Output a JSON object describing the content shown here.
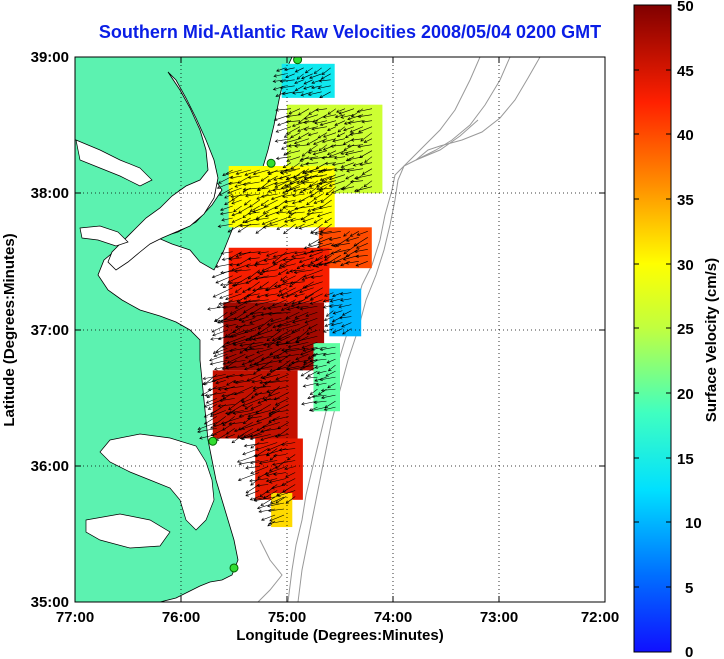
{
  "title": "Southern Mid-Atlantic Raw Velocities 2008/05/04 0200 GMT",
  "xlabel": "Longitude (Degrees:Minutes)",
  "ylabel": "Latitude (Degrees:Minutes)",
  "colorbar_label": "Surface Velocity (cm/s)",
  "x_ticks": [
    "77:00",
    "76:00",
    "75:00",
    "74:00",
    "73:00",
    "72:00"
  ],
  "y_ticks": [
    "39:00",
    "38:00",
    "37:00",
    "36:00",
    "35:00"
  ],
  "colorbar_ticks": [
    "50",
    "45",
    "40",
    "35",
    "30",
    "25",
    "20",
    "15",
    "10",
    "5",
    "0"
  ],
  "colors": {
    "land": "#5cf2b0",
    "title": "#0a1ee6",
    "bathymetry": "#999999"
  },
  "chart_data": {
    "type": "heatmap",
    "title": "Southern Mid-Atlantic Raw Velocities 2008/05/04 0200 GMT",
    "xlabel": "Longitude (Degrees:Minutes)",
    "ylabel": "Latitude (Degrees:Minutes)",
    "xlim": [
      -77,
      -72
    ],
    "ylim": [
      35,
      39
    ],
    "colorbar": {
      "label": "Surface Velocity (cm/s)",
      "range": [
        0,
        50
      ]
    },
    "grid": true,
    "velocity_field_regions": [
      {
        "lon": [
          -75.05,
          -74.55
        ],
        "lat": [
          38.7,
          38.95
        ],
        "speed": 14
      },
      {
        "lon": [
          -75.0,
          -74.1
        ],
        "lat": [
          38.0,
          38.65
        ],
        "speed": 26
      },
      {
        "lon": [
          -75.55,
          -74.55
        ],
        "lat": [
          37.75,
          38.2
        ],
        "speed": 30
      },
      {
        "lon": [
          -74.7,
          -74.2
        ],
        "lat": [
          37.45,
          37.75
        ],
        "speed": 40
      },
      {
        "lon": [
          -75.55,
          -74.6
        ],
        "lat": [
          37.2,
          37.6
        ],
        "speed": 43
      },
      {
        "lon": [
          -74.6,
          -74.3
        ],
        "lat": [
          36.95,
          37.3
        ],
        "speed": 10
      },
      {
        "lon": [
          -75.6,
          -74.65
        ],
        "lat": [
          36.7,
          37.2
        ],
        "speed": 48
      },
      {
        "lon": [
          -74.75,
          -74.5
        ],
        "lat": [
          36.4,
          36.9
        ],
        "speed": 20
      },
      {
        "lon": [
          -75.7,
          -74.9
        ],
        "lat": [
          36.2,
          36.7
        ],
        "speed": 46
      },
      {
        "lon": [
          -75.3,
          -74.85
        ],
        "lat": [
          35.75,
          36.2
        ],
        "speed": 44
      },
      {
        "lon": [
          -75.15,
          -74.95
        ],
        "lat": [
          35.55,
          35.8
        ],
        "speed": 32
      }
    ],
    "stations": [
      {
        "lon": -74.9,
        "lat": 38.98
      },
      {
        "lon": -75.15,
        "lat": 38.22
      },
      {
        "lon": -75.7,
        "lat": 36.18
      },
      {
        "lon": -75.5,
        "lat": 35.25
      }
    ]
  }
}
